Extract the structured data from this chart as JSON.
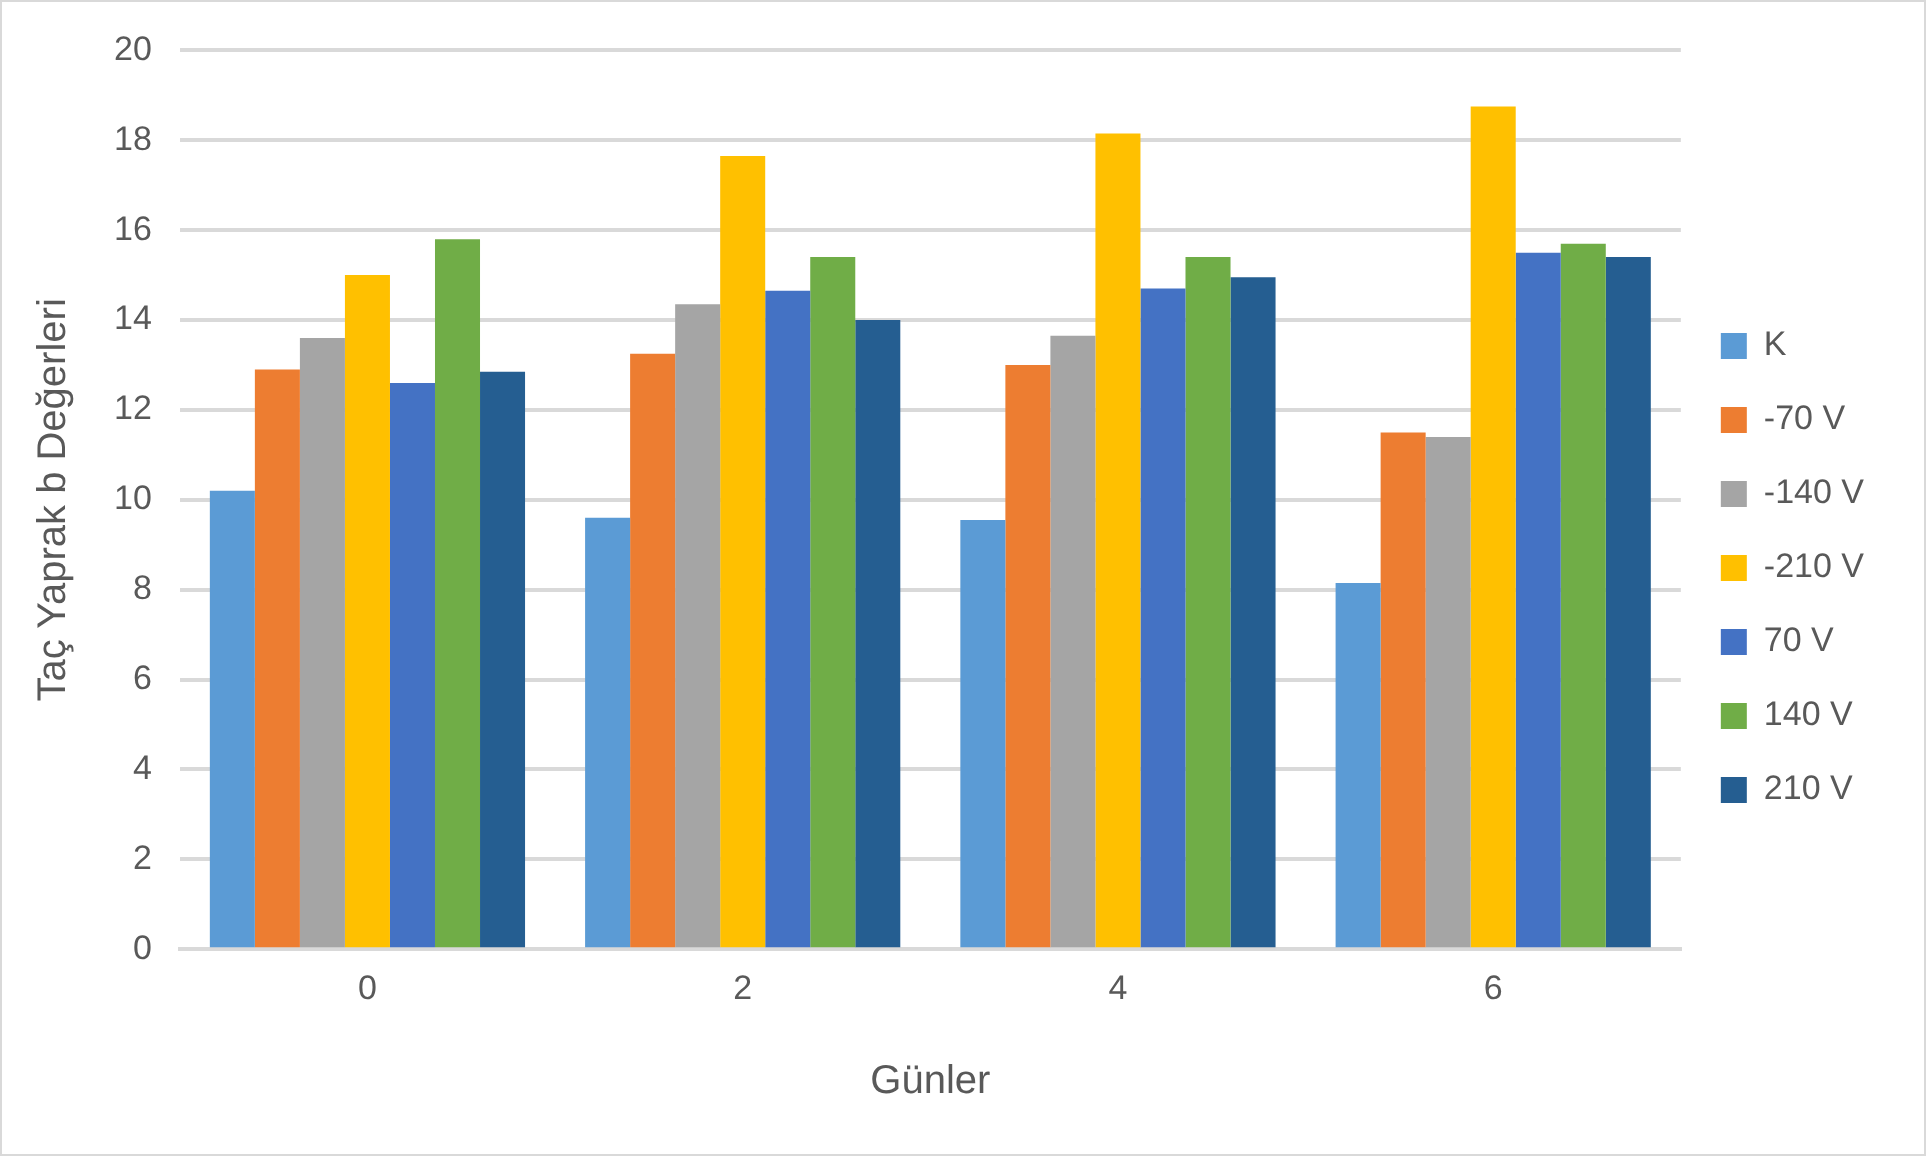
{
  "chart_data": {
    "type": "bar",
    "xlabel": "Günler",
    "ylabel": "Taç Yaprak b Değerleri",
    "categories": [
      "0",
      "2",
      "4",
      "6"
    ],
    "series": [
      {
        "name": "K",
        "color": "#5b9bd5",
        "values": [
          10.2,
          9.6,
          9.55,
          8.15
        ]
      },
      {
        "name": "-70 V",
        "color": "#ed7d31",
        "values": [
          12.9,
          13.25,
          13.0,
          11.5
        ]
      },
      {
        "name": "-140 V",
        "color": "#a5a5a5",
        "values": [
          13.6,
          14.35,
          13.65,
          11.4
        ]
      },
      {
        "name": "-210 V",
        "color": "#ffc000",
        "values": [
          15.0,
          17.65,
          18.15,
          18.75
        ]
      },
      {
        "name": "70 V",
        "color": "#4472c4",
        "values": [
          12.6,
          14.65,
          14.7,
          15.5
        ]
      },
      {
        "name": "140 V",
        "color": "#70ad47",
        "values": [
          15.8,
          15.4,
          15.4,
          15.7
        ]
      },
      {
        "name": "210 V",
        "color": "#255e91",
        "values": [
          12.85,
          14.0,
          14.95,
          15.4
        ]
      }
    ],
    "ylim": [
      0,
      20
    ],
    "yticks": [
      0,
      2,
      4,
      6,
      8,
      10,
      12,
      14,
      16,
      18,
      20
    ],
    "grid": "y",
    "legend": "right"
  }
}
